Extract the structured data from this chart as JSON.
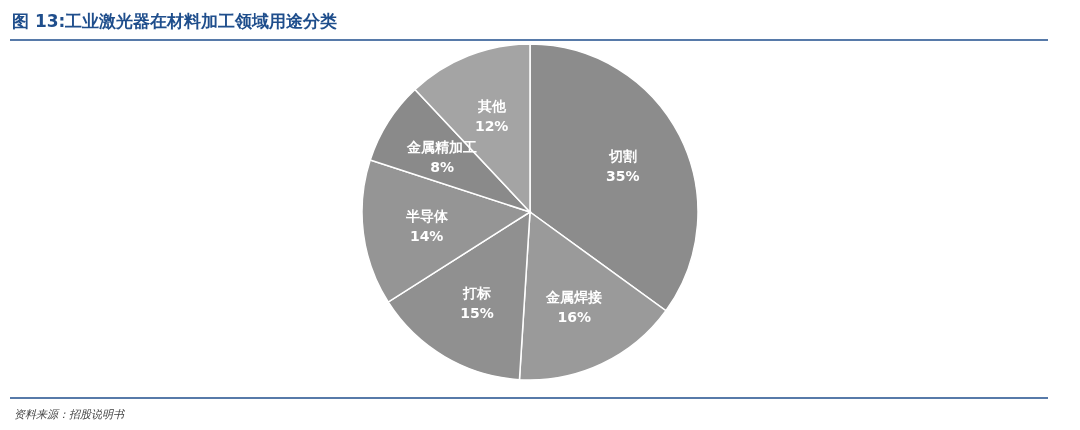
{
  "chart_data": {
    "type": "pie",
    "title": "图 13:工业激光器在材料加工领域用途分类",
    "categories": [
      "切割",
      "金属焊接",
      "打标",
      "半导体",
      "金属精加工",
      "其他"
    ],
    "values": [
      35,
      16,
      15,
      14,
      8,
      12
    ],
    "colors": [
      "#8c8c8c",
      "#9a9a9a",
      "#909090",
      "#959595",
      "#8a8a8a",
      "#a4a4a4"
    ],
    "value_labels": [
      "35%",
      "16%",
      "15%",
      "14%",
      "8%",
      "12%"
    ],
    "annotations": [
      "资料来源：招股说明书"
    ]
  }
}
